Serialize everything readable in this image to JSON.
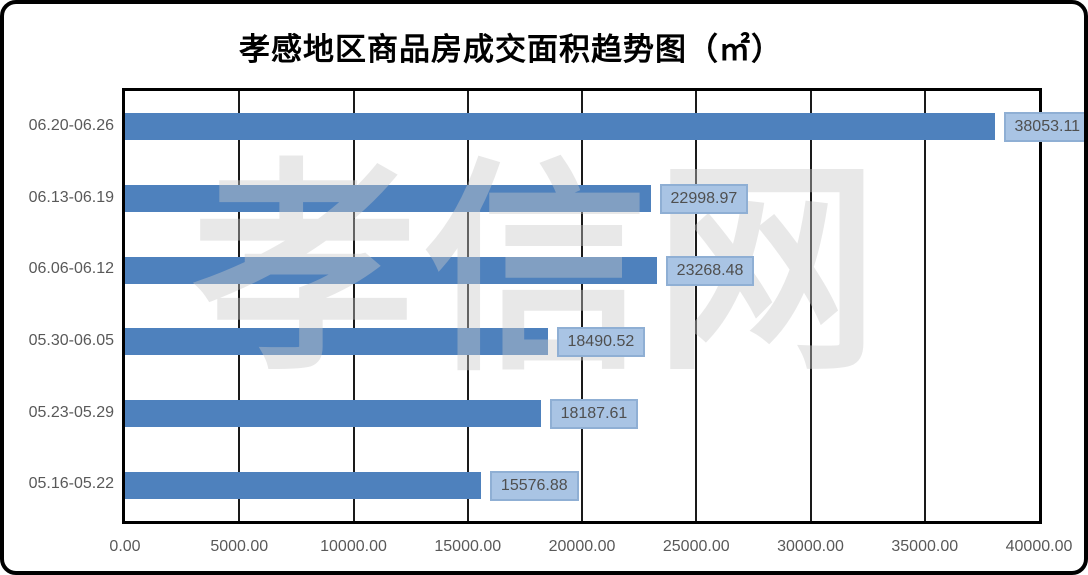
{
  "title": "孝感地区商品房成交面积趋势图（㎡）",
  "watermark": "孝信网",
  "chart_data": {
    "type": "bar",
    "orientation": "horizontal",
    "title": "孝感地区商品房成交面积趋势图（㎡）",
    "categories": [
      "06.20-06.26",
      "06.13-06.19",
      "06.06-06.12",
      "05.30-06.05",
      "05.23-05.29",
      "05.16-05.22"
    ],
    "values": [
      38053.11,
      22998.97,
      23268.48,
      18490.52,
      18187.61,
      15576.88
    ],
    "value_labels": [
      "38053.11",
      "22998.97",
      "23268.48",
      "18490.52",
      "18187.61",
      "15576.88"
    ],
    "x_ticks": [
      "0.00",
      "5000.00",
      "10000.00",
      "15000.00",
      "20000.00",
      "25000.00",
      "30000.00",
      "35000.00",
      "40000.00"
    ],
    "xlim": [
      0,
      40000
    ],
    "xlabel": "",
    "ylabel": "",
    "grid": "vertical-major",
    "legend": "none",
    "colors": {
      "bar": "#4e81bd",
      "value_label_bg": "#a9c4e4",
      "value_label_border": "#8fafd4",
      "axis_text": "#595959",
      "gridline": "#1a1a1a",
      "watermark": "#c8c8c8"
    }
  }
}
